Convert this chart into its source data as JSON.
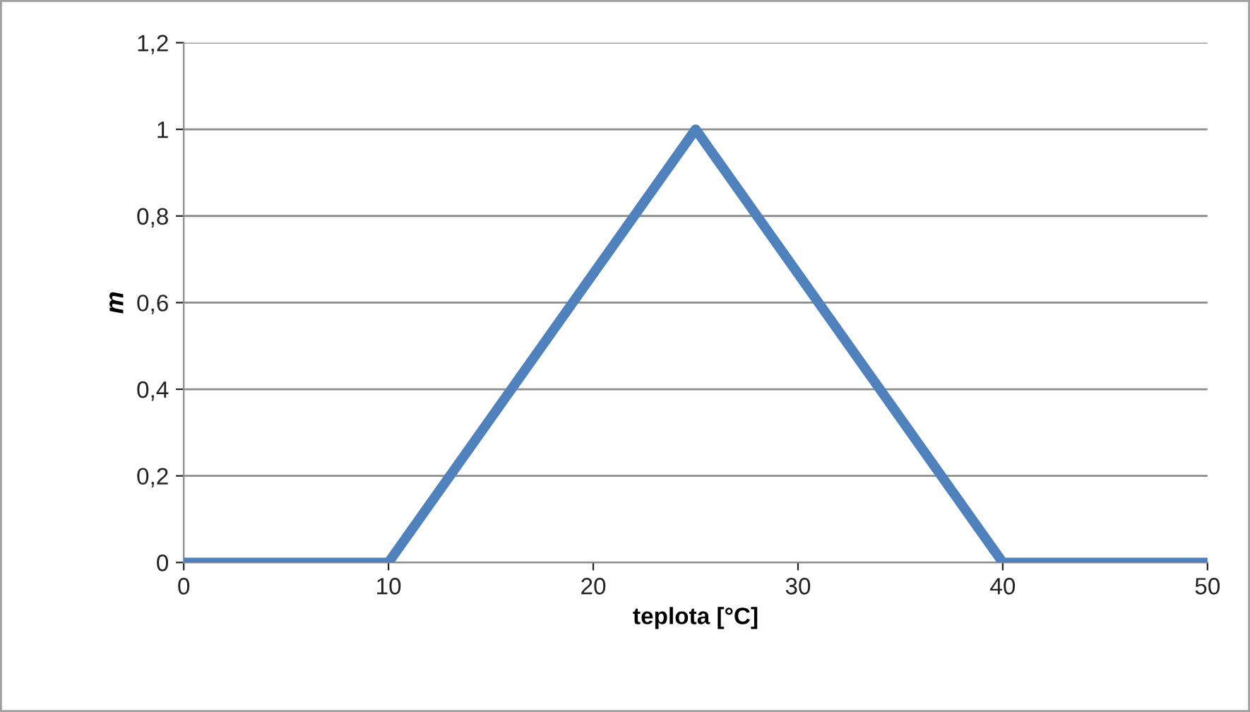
{
  "chart_data": {
    "type": "line",
    "xlabel": "teplota [°C]",
    "ylabel": "m",
    "x": [
      0,
      10,
      25,
      40,
      50
    ],
    "series": [
      {
        "color": "#4f81bd",
        "values": [
          0,
          0,
          1,
          0,
          0
        ]
      }
    ],
    "xlim": [
      0,
      50
    ],
    "xticks": [
      0,
      10,
      20,
      30,
      40,
      50
    ],
    "ylim": [
      0,
      1.2
    ],
    "yticks": [
      0,
      {
        "value": 0.2,
        "label": "0,2"
      },
      {
        "value": 0.4,
        "label": "0,4"
      },
      {
        "value": 0.6,
        "label": "0,6"
      },
      {
        "value": 0.8,
        "label": "0,8"
      },
      1,
      {
        "value": 1.2,
        "label": "1,2"
      }
    ],
    "grid": "y",
    "marker": "none",
    "line_style": "solid",
    "legend": false
  }
}
